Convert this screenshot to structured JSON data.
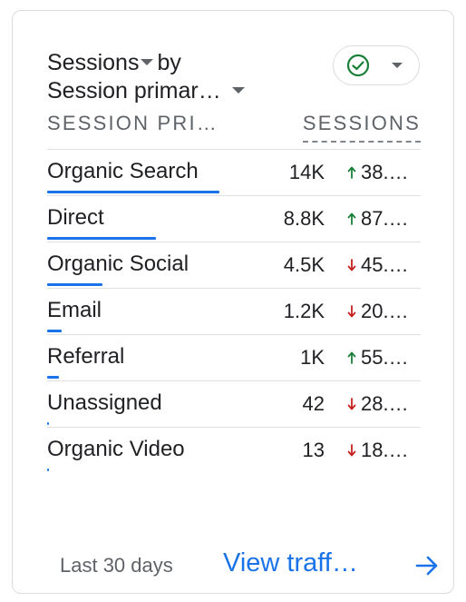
{
  "card": {
    "title_line1": "Sessions",
    "title_by": "by",
    "title_line2": "Session primar…"
  },
  "columns": {
    "dimension": "SESSION PRI…",
    "metric": "SESSIONS"
  },
  "rows": [
    {
      "label": "Organic Search",
      "value": "14K",
      "change": "38.…",
      "trend": "up",
      "bar_fraction": 1.0
    },
    {
      "label": "Direct",
      "value": "8.8K",
      "change": "87.…",
      "trend": "up",
      "bar_fraction": 0.63
    },
    {
      "label": "Organic Social",
      "value": "4.5K",
      "change": "45.…",
      "trend": "down",
      "bar_fraction": 0.32
    },
    {
      "label": "Email",
      "value": "1.2K",
      "change": "20.…",
      "trend": "down",
      "bar_fraction": 0.086
    },
    {
      "label": "Referral",
      "value": "1K",
      "change": "55.…",
      "trend": "up",
      "bar_fraction": 0.071
    },
    {
      "label": "Unassigned",
      "value": "42",
      "change": "28.…",
      "trend": "down",
      "bar_fraction": 0.003
    },
    {
      "label": "Organic Video",
      "value": "13",
      "change": "18.…",
      "trend": "down",
      "bar_fraction": 0.001
    }
  ],
  "footer": {
    "date_range": "Last 30 days",
    "link": "View traff…"
  },
  "colors": {
    "up": "#188038",
    "down": "#c5221f",
    "bar": "#1a73e8",
    "check": "#188038"
  },
  "icons": {
    "status": "check-circle-icon",
    "link_arrow": "arrow-right-icon"
  }
}
